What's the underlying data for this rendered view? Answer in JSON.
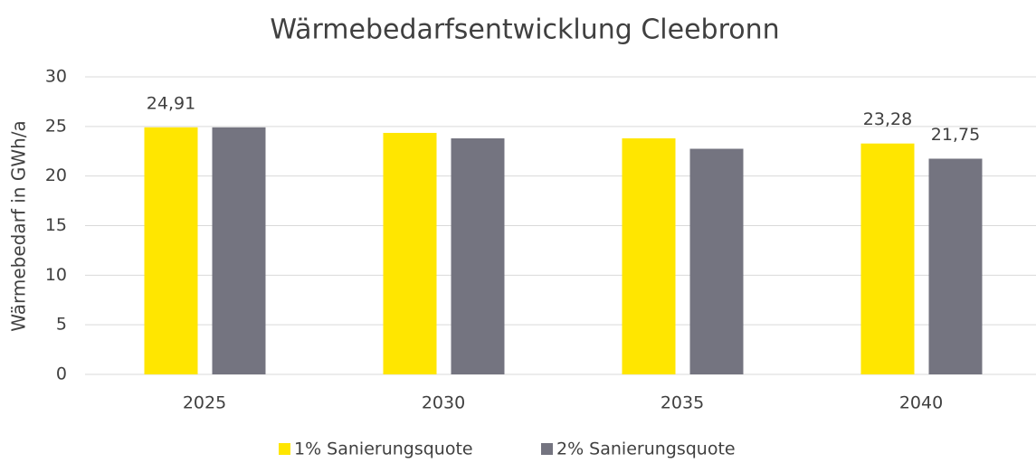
{
  "chart_data": {
    "type": "bar",
    "title": "Wärmebedarfsentwicklung Cleebronn",
    "y_label": "Wärmebedarf in GWh/a",
    "categories": [
      "2025",
      "2030",
      "2035",
      "2040"
    ],
    "series": [
      {
        "name": "1% Sanierungsquote",
        "color": "#FFE600",
        "values": [
          24.91,
          24.35,
          23.8,
          23.28
        ],
        "value_labels": [
          "24,91",
          null,
          null,
          "23,28"
        ]
      },
      {
        "name": "2% Sanierungsquote",
        "color": "#747480",
        "values": [
          24.91,
          23.8,
          22.75,
          21.75
        ],
        "value_labels": [
          null,
          null,
          null,
          "21,75"
        ]
      }
    ],
    "ylim": [
      0,
      30
    ],
    "yticks": [
      0,
      5,
      10,
      15,
      20,
      25,
      30
    ],
    "grid": true,
    "legend": "bottom"
  }
}
